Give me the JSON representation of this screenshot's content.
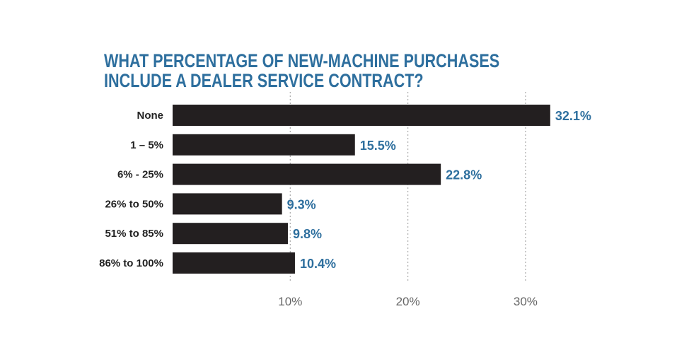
{
  "chart_data": {
    "type": "bar",
    "orientation": "horizontal",
    "title": [
      "WHAT PERCENTAGE OF NEW-MACHINE PURCHASES",
      "INCLUDE A DEALER SERVICE CONTRACT?"
    ],
    "categories": [
      "None",
      "1 – 5%",
      "6% - 25%",
      "26% to 50%",
      "51% to 85%",
      "86% to 100%"
    ],
    "values": [
      32.1,
      15.5,
      22.8,
      9.3,
      9.8,
      10.4
    ],
    "value_labels": [
      "32.1%",
      "15.5%",
      "22.8%",
      "9.3%",
      "9.8%",
      "10.4%"
    ],
    "xticks": [
      10,
      20,
      30
    ],
    "xtick_labels": [
      "10%",
      "20%",
      "30%"
    ],
    "xlim": [
      0,
      35
    ],
    "grid": "vertical dotted",
    "xlabel": "",
    "ylabel": "",
    "colors": {
      "bar": "#231f20",
      "title": "#2e6f9e",
      "value_label": "#2e6f9e"
    }
  }
}
